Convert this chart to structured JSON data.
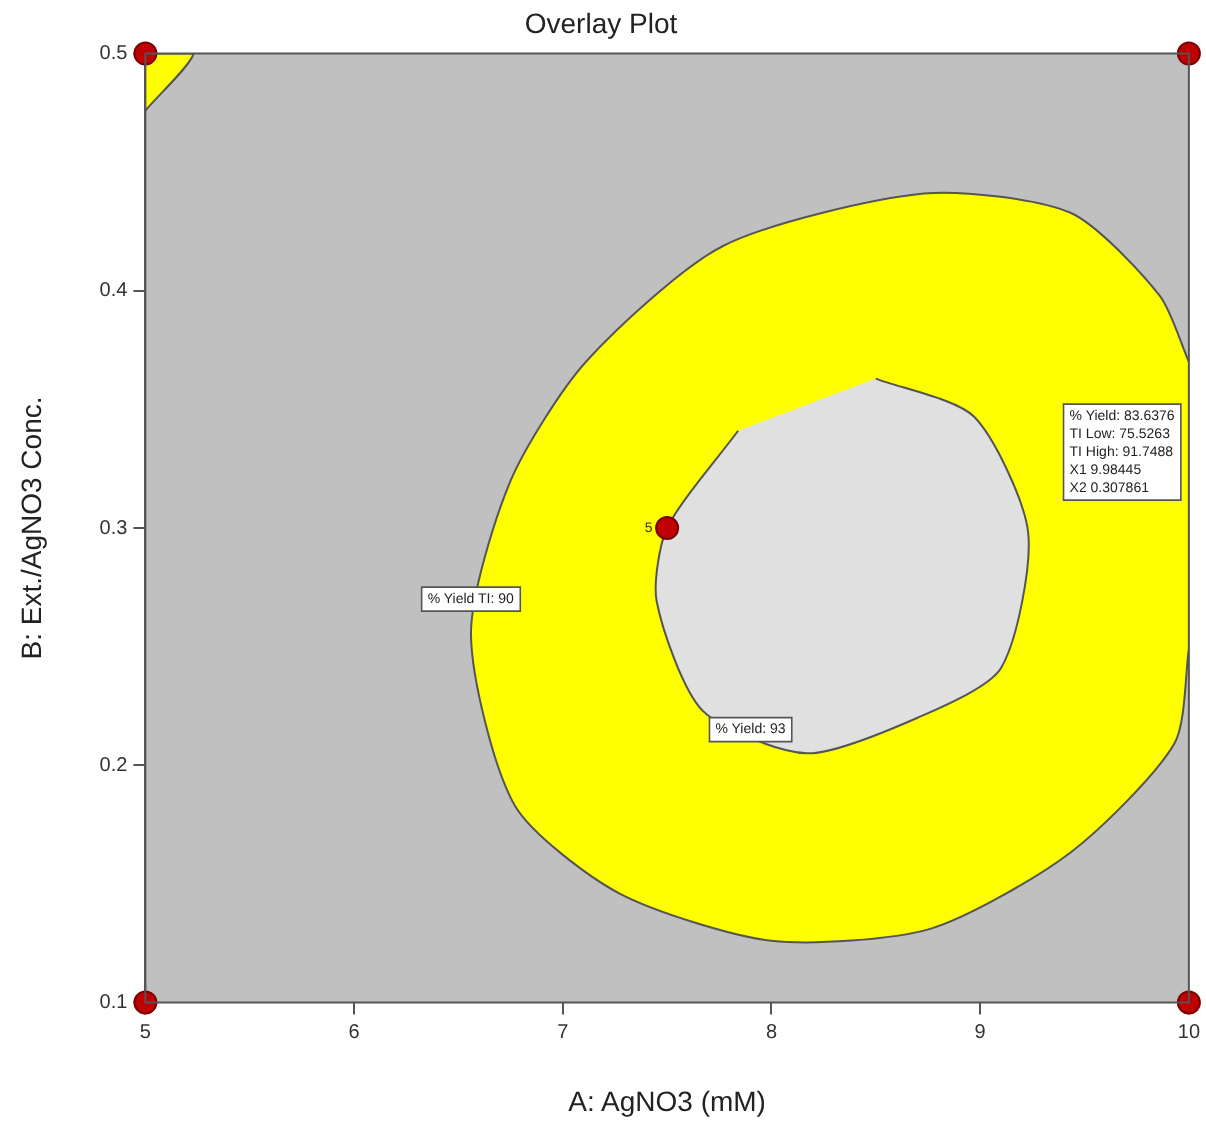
{
  "chart_data": {
    "type": "scatter",
    "title": "Overlay Plot",
    "xlabel": "A: AgNO3 (mM)",
    "ylabel": "B: Ext./AgNO3 Conc.",
    "xlim": [
      5,
      10
    ],
    "xticks": [
      5,
      6,
      7,
      8,
      9,
      10
    ],
    "ylim": [
      0.1,
      0.5
    ],
    "yticks": [
      0.1,
      0.2,
      0.3,
      0.4,
      0.5
    ],
    "grid": false,
    "legend": false,
    "bands": [
      {
        "axis": "x",
        "from": 5,
        "to": 10,
        "color": "#c0c0c0"
      }
    ],
    "series": [
      {
        "type": "area",
        "color": "#ffff00",
        "x": [
          10,
          9.86,
          9.43,
          8.73,
          7.77,
          7.11,
          6.75,
          6.56,
          6.77,
          7.27,
          8.0,
          8.76,
          9.43,
          9.93,
          10
        ],
        "values": [
          0.37,
          0.398,
          0.433,
          0.441,
          0.419,
          0.37,
          0.32,
          0.255,
          0.183,
          0.146,
          0.126,
          0.131,
          0.163,
          0.209,
          0.249
        ]
      },
      {
        "type": "area",
        "color": "#e0e0e0",
        "x": [
          8.5,
          8.97,
          9.23,
          9.1,
          8.7,
          8.17,
          7.67,
          7.45,
          7.5,
          7.84
        ],
        "values": [
          0.363,
          0.347,
          0.298,
          0.241,
          0.22,
          0.205,
          0.223,
          0.269,
          0.3,
          0.341
        ]
      },
      {
        "type": "area",
        "color": "#ffff00",
        "x": [
          5,
          5.23,
          5
        ],
        "values": [
          0.5,
          0.5,
          0.476
        ]
      },
      {
        "color": "#c00000",
        "marker": "circle",
        "x": [
          5,
          5,
          10,
          10,
          7.5
        ],
        "values": [
          0.1,
          0.5,
          0.1,
          0.5,
          0.3
        ]
      }
    ],
    "annotations": [
      {
        "text": "% Yield TI: 90",
        "x": 6.56,
        "y": 0.27
      },
      {
        "text": "% Yield: 93",
        "x": 7.9,
        "y": 0.215
      },
      {
        "text": "5",
        "x": 7.43,
        "y": 0.3
      },
      "% Yield: 83.6376\nTI Low: 75.5263\nTI High: 91.7488\nX1 9.98445\nX2 0.307861"
    ]
  }
}
